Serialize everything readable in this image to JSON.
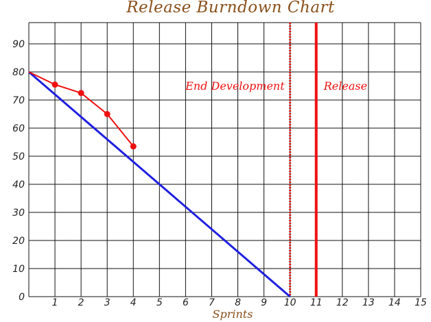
{
  "colors": {
    "title": "#8a4f1a",
    "axis_label": "#8a4f1a",
    "grid": "#111111",
    "ideal": "#1f1fe0",
    "actual": "#ee1010",
    "markers": "#ee1010"
  },
  "chart_data": {
    "type": "line",
    "title": "Release Burndown Chart",
    "xlabel": "Sprints",
    "ylabel": "",
    "xlim": [
      0,
      15
    ],
    "ylim": [
      0,
      97
    ],
    "grid": true,
    "x_ticks": [
      1,
      2,
      3,
      4,
      5,
      6,
      7,
      8,
      9,
      10,
      11,
      12,
      13,
      14,
      15
    ],
    "y_ticks": [
      0,
      10,
      20,
      30,
      40,
      50,
      60,
      70,
      80,
      90
    ],
    "series": [
      {
        "role": "ideal",
        "x": [
          0,
          10
        ],
        "y": [
          80,
          0
        ]
      },
      {
        "role": "actual",
        "x": [
          0,
          1,
          2,
          3,
          4
        ],
        "y": [
          80,
          75.5,
          72.5,
          65,
          53.5
        ]
      }
    ],
    "annotations": [
      {
        "label": "End Development",
        "x": 10,
        "style": "dotted"
      },
      {
        "label": "Release",
        "x": 11,
        "style": "solid"
      }
    ]
  }
}
